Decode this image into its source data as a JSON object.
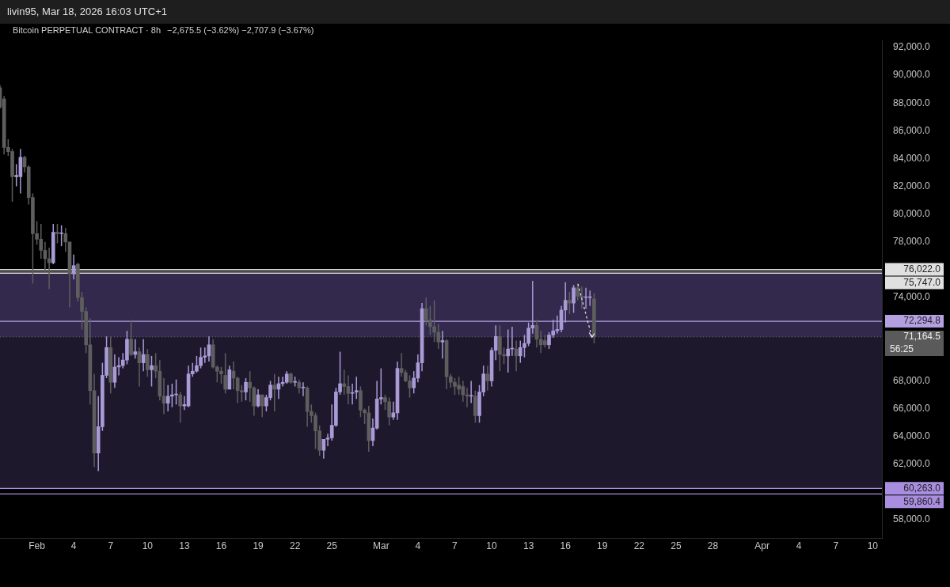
{
  "chart_data": {
    "type": "candlestick",
    "title": "Bitcoin PERPETUAL CONTRACT · 8h",
    "subtitle": "−2,675.5 (−3.62%)  −2,707.9 (−3.67%)",
    "annotations": [
      "livin95, Mar 18, 2026 16:03 UTC+1",
      "56:25"
    ],
    "x": [
      "2026-01-29T00:00",
      "2026-01-29T08:00",
      "2026-01-29T16:00",
      "2026-01-30T00:00",
      "2026-01-30T08:00",
      "2026-01-30T16:00",
      "2026-01-31T00:00",
      "2026-01-31T08:00",
      "2026-01-31T16:00",
      "2026-02-01T00:00",
      "2026-02-01T08:00",
      "2026-02-01T16:00",
      "2026-02-02T00:00",
      "2026-02-02T08:00",
      "2026-02-02T16:00",
      "2026-02-03T00:00",
      "2026-02-03T08:00",
      "2026-02-03T16:00",
      "2026-02-04T00:00",
      "2026-02-04T08:00",
      "2026-02-04T16:00",
      "2026-02-05T00:00",
      "2026-02-05T08:00",
      "2026-02-05T16:00",
      "2026-02-06T00:00",
      "2026-02-06T08:00",
      "2026-02-06T16:00",
      "2026-02-07T00:00",
      "2026-02-07T08:00",
      "2026-02-07T16:00",
      "2026-02-08T00:00",
      "2026-02-08T08:00",
      "2026-02-08T16:00",
      "2026-02-09T00:00",
      "2026-02-09T08:00",
      "2026-02-09T16:00",
      "2026-02-10T00:00",
      "2026-02-10T08:00",
      "2026-02-10T16:00",
      "2026-02-11T00:00",
      "2026-02-11T08:00",
      "2026-02-11T16:00",
      "2026-02-12T00:00",
      "2026-02-12T08:00",
      "2026-02-12T16:00",
      "2026-02-13T00:00",
      "2026-02-13T08:00",
      "2026-02-13T16:00",
      "2026-02-14T00:00",
      "2026-02-14T08:00",
      "2026-02-14T16:00",
      "2026-02-15T00:00",
      "2026-02-15T08:00",
      "2026-02-15T16:00",
      "2026-02-16T00:00",
      "2026-02-16T08:00",
      "2026-02-16T16:00",
      "2026-02-17T00:00",
      "2026-02-17T08:00",
      "2026-02-17T16:00",
      "2026-02-18T00:00",
      "2026-02-18T08:00",
      "2026-02-18T16:00",
      "2026-02-19T00:00",
      "2026-02-19T08:00",
      "2026-02-19T16:00",
      "2026-02-20T00:00",
      "2026-02-20T08:00",
      "2026-02-20T16:00",
      "2026-02-21T00:00",
      "2026-02-21T08:00",
      "2026-02-21T16:00",
      "2026-02-22T00:00",
      "2026-02-22T08:00",
      "2026-02-22T16:00",
      "2026-02-23T00:00",
      "2026-02-23T08:00",
      "2026-02-23T16:00",
      "2026-02-24T00:00",
      "2026-02-24T08:00",
      "2026-02-24T16:00",
      "2026-02-25T00:00",
      "2026-02-25T08:00",
      "2026-02-25T16:00",
      "2026-02-26T00:00",
      "2026-02-26T08:00",
      "2026-02-26T16:00",
      "2026-02-27T00:00",
      "2026-02-27T08:00",
      "2026-02-27T16:00",
      "2026-02-28T00:00",
      "2026-02-28T08:00",
      "2026-02-28T16:00",
      "2026-03-01T00:00",
      "2026-03-01T08:00",
      "2026-03-01T16:00",
      "2026-03-02T00:00",
      "2026-03-02T08:00",
      "2026-03-02T16:00",
      "2026-03-03T00:00",
      "2026-03-03T08:00",
      "2026-03-03T16:00",
      "2026-03-04T00:00",
      "2026-03-04T08:00",
      "2026-03-04T16:00",
      "2026-03-05T00:00",
      "2026-03-05T08:00",
      "2026-03-05T16:00",
      "2026-03-06T00:00",
      "2026-03-06T08:00",
      "2026-03-06T16:00",
      "2026-03-07T00:00",
      "2026-03-07T08:00",
      "2026-03-07T16:00",
      "2026-03-08T00:00",
      "2026-03-08T08:00",
      "2026-03-08T16:00",
      "2026-03-09T00:00",
      "2026-03-09T08:00",
      "2026-03-09T16:00",
      "2026-03-10T00:00",
      "2026-03-10T08:00",
      "2026-03-10T16:00",
      "2026-03-11T00:00",
      "2026-03-11T08:00",
      "2026-03-11T16:00",
      "2026-03-12T00:00",
      "2026-03-12T08:00",
      "2026-03-12T16:00",
      "2026-03-13T00:00",
      "2026-03-13T08:00",
      "2026-03-13T16:00",
      "2026-03-14T00:00",
      "2026-03-14T08:00",
      "2026-03-14T16:00",
      "2026-03-15T00:00",
      "2026-03-15T08:00",
      "2026-03-15T16:00",
      "2026-03-16T00:00",
      "2026-03-16T08:00",
      "2026-03-16T16:00",
      "2026-03-17T00:00",
      "2026-03-17T08:00",
      "2026-03-17T16:00",
      "2026-03-18T00:00",
      "2026-03-18T08:00"
    ],
    "ohlc": [
      [
        89100,
        89300,
        87600,
        87700
      ],
      [
        88300,
        88500,
        84300,
        84800
      ],
      [
        84800,
        85400,
        84200,
        84500
      ],
      [
        84500,
        84700,
        80900,
        82700
      ],
      [
        82700,
        83600,
        82000,
        82800
      ],
      [
        82700,
        84700,
        81500,
        84100
      ],
      [
        84100,
        84200,
        83000,
        83400
      ],
      [
        83400,
        83500,
        80700,
        81200
      ],
      [
        81200,
        81500,
        75000,
        78600
      ],
      [
        78600,
        79500,
        77800,
        78200
      ],
      [
        78200,
        79300,
        76800,
        77400
      ],
      [
        77400,
        78000,
        75800,
        76800
      ],
      [
        76800,
        77600,
        74600,
        76500
      ],
      [
        76500,
        79300,
        76400,
        78700
      ],
      [
        78700,
        79300,
        77900,
        78600
      ],
      [
        78600,
        79200,
        77700,
        78600
      ],
      [
        78600,
        79000,
        77300,
        78000
      ],
      [
        78000,
        78000,
        73300,
        75700
      ],
      [
        75700,
        77100,
        75300,
        76300
      ],
      [
        76400,
        76500,
        73700,
        74000
      ],
      [
        74000,
        74400,
        71700,
        73000
      ],
      [
        73000,
        73300,
        70000,
        70600
      ],
      [
        70600,
        72500,
        66300,
        67300
      ],
      [
        67300,
        68500,
        61800,
        62800
      ],
      [
        62800,
        66900,
        61500,
        64700
      ],
      [
        64700,
        69300,
        64400,
        68400
      ],
      [
        68400,
        71200,
        68200,
        70400
      ],
      [
        70400,
        71200,
        67100,
        67900
      ],
      [
        67900,
        69900,
        67500,
        69000
      ],
      [
        69000,
        69700,
        68400,
        69100
      ],
      [
        69100,
        70000,
        68900,
        69500
      ],
      [
        69500,
        71600,
        69200,
        71000
      ],
      [
        71000,
        72400,
        69800,
        69900
      ],
      [
        69900,
        71000,
        69600,
        70100
      ],
      [
        70100,
        70400,
        67600,
        69300
      ],
      [
        69300,
        71000,
        68700,
        69900
      ],
      [
        69900,
        70300,
        68300,
        68800
      ],
      [
        68800,
        69800,
        67600,
        69100
      ],
      [
        69100,
        70000,
        68200,
        68700
      ],
      [
        68700,
        69500,
        66600,
        66900
      ],
      [
        66900,
        68200,
        65600,
        66400
      ],
      [
        66400,
        67700,
        65800,
        66900
      ],
      [
        66900,
        67800,
        66100,
        67000
      ],
      [
        67000,
        68100,
        66300,
        67000
      ],
      [
        67000,
        67200,
        65000,
        66200
      ],
      [
        66200,
        66900,
        65900,
        66300
      ],
      [
        66200,
        69100,
        66100,
        68500
      ],
      [
        68500,
        69300,
        68300,
        68700
      ],
      [
        68700,
        69800,
        68600,
        69100
      ],
      [
        69100,
        70400,
        68900,
        69700
      ],
      [
        69700,
        70400,
        69300,
        69800
      ],
      [
        69800,
        71200,
        69400,
        70600
      ],
      [
        70600,
        71000,
        68900,
        69000
      ],
      [
        69000,
        69100,
        67900,
        68700
      ],
      [
        68700,
        69000,
        67800,
        68500
      ],
      [
        68400,
        70000,
        67100,
        67400
      ],
      [
        67400,
        69100,
        67400,
        68800
      ],
      [
        68700,
        69400,
        67400,
        68200
      ],
      [
        68200,
        68300,
        66400,
        67300
      ],
      [
        67300,
        67700,
        66500,
        67200
      ],
      [
        67200,
        68200,
        66600,
        67900
      ],
      [
        67900,
        68700,
        66500,
        67500
      ],
      [
        67500,
        67600,
        65500,
        66200
      ],
      [
        66200,
        67400,
        66100,
        67000
      ],
      [
        67000,
        67000,
        65400,
        66200
      ],
      [
        66200,
        67000,
        65800,
        66800
      ],
      [
        66800,
        68000,
        66600,
        67700
      ],
      [
        67700,
        68500,
        65800,
        67400
      ],
      [
        67400,
        68300,
        66700,
        67800
      ],
      [
        67800,
        68300,
        67600,
        67900
      ],
      [
        67900,
        68700,
        67800,
        68500
      ],
      [
        68500,
        68600,
        67800,
        67900
      ],
      [
        67900,
        68300,
        67600,
        67900
      ],
      [
        67900,
        68100,
        67100,
        67500
      ],
      [
        67500,
        67900,
        66900,
        67500
      ],
      [
        67500,
        67600,
        64700,
        65800
      ],
      [
        65800,
        66300,
        65000,
        65500
      ],
      [
        65500,
        65700,
        63100,
        64400
      ],
      [
        64400,
        64800,
        62600,
        63000
      ],
      [
        63000,
        63800,
        62400,
        63800
      ],
      [
        63800,
        64200,
        63300,
        63900
      ],
      [
        63900,
        66300,
        63700,
        64800
      ],
      [
        64800,
        67500,
        64700,
        67200
      ],
      [
        67200,
        70100,
        67000,
        67800
      ],
      [
        67800,
        68800,
        67000,
        67600
      ],
      [
        67600,
        68400,
        66300,
        67100
      ],
      [
        67100,
        67800,
        66300,
        67100
      ],
      [
        67200,
        68300,
        66700,
        67300
      ],
      [
        67300,
        67600,
        65400,
        65900
      ],
      [
        65900,
        66000,
        64900,
        65700
      ],
      [
        65700,
        66200,
        62900,
        63700
      ],
      [
        63700,
        65300,
        63300,
        64600
      ],
      [
        64600,
        68000,
        64500,
        66700
      ],
      [
        66700,
        68900,
        66300,
        66800
      ],
      [
        66800,
        67000,
        65900,
        66500
      ],
      [
        66500,
        66800,
        64800,
        65400
      ],
      [
        65400,
        66500,
        65200,
        65700
      ],
      [
        65700,
        69400,
        65200,
        68900
      ],
      [
        68900,
        70000,
        68300,
        68600
      ],
      [
        68600,
        68800,
        67900,
        68000
      ],
      [
        68000,
        68400,
        66800,
        67500
      ],
      [
        67500,
        68700,
        67100,
        68200
      ],
      [
        68200,
        69900,
        67900,
        69300
      ],
      [
        69300,
        73600,
        68700,
        73200
      ],
      [
        73200,
        74000,
        72000,
        72400
      ],
      [
        72400,
        73400,
        71300,
        71900
      ],
      [
        71900,
        73800,
        70800,
        71500
      ],
      [
        71500,
        72100,
        70300,
        70800
      ],
      [
        70800,
        71600,
        69600,
        70900
      ],
      [
        70900,
        71000,
        67400,
        68300
      ],
      [
        68300,
        68500,
        67500,
        67900
      ],
      [
        67900,
        68200,
        67000,
        67600
      ],
      [
        67700,
        68300,
        67000,
        67400
      ],
      [
        67600,
        68000,
        66500,
        67000
      ],
      [
        67000,
        67500,
        66100,
        66900
      ],
      [
        66900,
        68000,
        66400,
        66900
      ],
      [
        66900,
        67300,
        65000,
        65500
      ],
      [
        65500,
        67700,
        65000,
        67200
      ],
      [
        67200,
        69100,
        66900,
        68500
      ],
      [
        68500,
        69100,
        67300,
        68000
      ],
      [
        68000,
        70400,
        67600,
        70200
      ],
      [
        70200,
        72000,
        69500,
        71200
      ],
      [
        71200,
        72000,
        68700,
        69900
      ],
      [
        69900,
        70400,
        69200,
        69800
      ],
      [
        69800,
        71700,
        68600,
        70300
      ],
      [
        70300,
        71900,
        69800,
        70300
      ],
      [
        70300,
        70900,
        68700,
        69800
      ],
      [
        69800,
        70900,
        69300,
        70400
      ],
      [
        70400,
        71300,
        69700,
        70700
      ],
      [
        70700,
        72200,
        70500,
        71800
      ],
      [
        71800,
        75200,
        71400,
        72000
      ],
      [
        72000,
        72400,
        70400,
        71000
      ],
      [
        71000,
        71600,
        70000,
        70600
      ],
      [
        70900,
        71300,
        70400,
        70600
      ],
      [
        70600,
        71500,
        70300,
        71300
      ],
      [
        71300,
        72400,
        71100,
        71600
      ],
      [
        71600,
        72700,
        71400,
        71700
      ],
      [
        71700,
        73400,
        71500,
        73100
      ],
      [
        73100,
        75100,
        72200,
        73800
      ],
      [
        73800,
        74400,
        72800,
        73600
      ],
      [
        73600,
        74900,
        72900,
        74700
      ],
      [
        74700,
        75000,
        73800,
        74100
      ],
      [
        74100,
        74800,
        73200,
        74000
      ],
      [
        74000,
        74700,
        73200,
        74000
      ],
      [
        74000,
        74500,
        73400,
        74000
      ],
      [
        73900,
        74300,
        70700,
        71164.5
      ]
    ],
    "xlim": [
      "2026-01-29T00:00",
      "2026-04-10T18:00"
    ],
    "xticks": [
      {
        "value": "2026-02-01",
        "label": "Feb"
      },
      {
        "value": "2026-02-04",
        "label": "4"
      },
      {
        "value": "2026-02-07",
        "label": "7"
      },
      {
        "value": "2026-02-10",
        "label": "10"
      },
      {
        "value": "2026-02-13",
        "label": "13"
      },
      {
        "value": "2026-02-16",
        "label": "16"
      },
      {
        "value": "2026-02-19",
        "label": "19"
      },
      {
        "value": "2026-02-22",
        "label": "22"
      },
      {
        "value": "2026-02-25",
        "label": "25"
      },
      {
        "value": "2026-03-01",
        "label": "Mar"
      },
      {
        "value": "2026-03-04",
        "label": "4"
      },
      {
        "value": "2026-03-07",
        "label": "7"
      },
      {
        "value": "2026-03-10",
        "label": "10"
      },
      {
        "value": "2026-03-13",
        "label": "13"
      },
      {
        "value": "2026-03-16",
        "label": "16"
      },
      {
        "value": "2026-03-19",
        "label": "19"
      },
      {
        "value": "2026-03-22",
        "label": "22"
      },
      {
        "value": "2026-03-25",
        "label": "25"
      },
      {
        "value": "2026-03-28",
        "label": "28"
      },
      {
        "value": "2026-04-01",
        "label": "Apr"
      },
      {
        "value": "2026-04-04",
        "label": "4"
      },
      {
        "value": "2026-04-07",
        "label": "7"
      },
      {
        "value": "2026-04-10",
        "label": "10"
      }
    ],
    "ylim": [
      56650,
      92500
    ],
    "yticks": [
      {
        "value": 58000,
        "label": "58,000.0"
      },
      {
        "value": 62000,
        "label": "62,000.0"
      },
      {
        "value": 64000,
        "label": "64,000.0"
      },
      {
        "value": 66000,
        "label": "66,000.0"
      },
      {
        "value": 68000,
        "label": "68,000.0"
      },
      {
        "value": 74000,
        "label": "74,000.0"
      },
      {
        "value": 78000,
        "label": "78,000.0"
      },
      {
        "value": 80000,
        "label": "80,000.0"
      },
      {
        "value": 82000,
        "label": "82,000.0"
      },
      {
        "value": 84000,
        "label": "84,000.0"
      },
      {
        "value": 86000,
        "label": "86,000.0"
      },
      {
        "value": 88000,
        "label": "88,000.0"
      },
      {
        "value": 90000,
        "label": "90,000.0"
      },
      {
        "value": 92000,
        "label": "92,000.0"
      }
    ],
    "bands": [
      {
        "axis": "y",
        "from": 75747,
        "to": 76022,
        "color": "#8a8a8a"
      },
      {
        "axis": "y",
        "from": 71164.5,
        "to": 75747,
        "color": "#5b4a8a"
      },
      {
        "axis": "y",
        "from": 60263,
        "to": 71164.5,
        "color": "#362b52"
      }
    ],
    "ref_lines": [
      {
        "axis": "y",
        "value": 76022,
        "label": "76,022.0",
        "color": "#e0e0e0"
      },
      {
        "axis": "y",
        "value": 75747,
        "label": "75,747.0",
        "color": "#e0e0e0"
      },
      {
        "axis": "y",
        "value": 72294.8,
        "label": "72,294.8",
        "color": "#b4a0e0"
      },
      {
        "axis": "y",
        "value": 71164.5,
        "label": "71,164.5",
        "color": "#5a5a5a",
        "line_style": "dotted"
      },
      {
        "axis": "y",
        "value": 60263,
        "label": "60,263.0",
        "color": "#a98ee0"
      },
      {
        "axis": "y",
        "value": 59860.4,
        "label": "59,860.4",
        "color": "#a98ee0"
      }
    ],
    "grid": false,
    "legend": false
  }
}
